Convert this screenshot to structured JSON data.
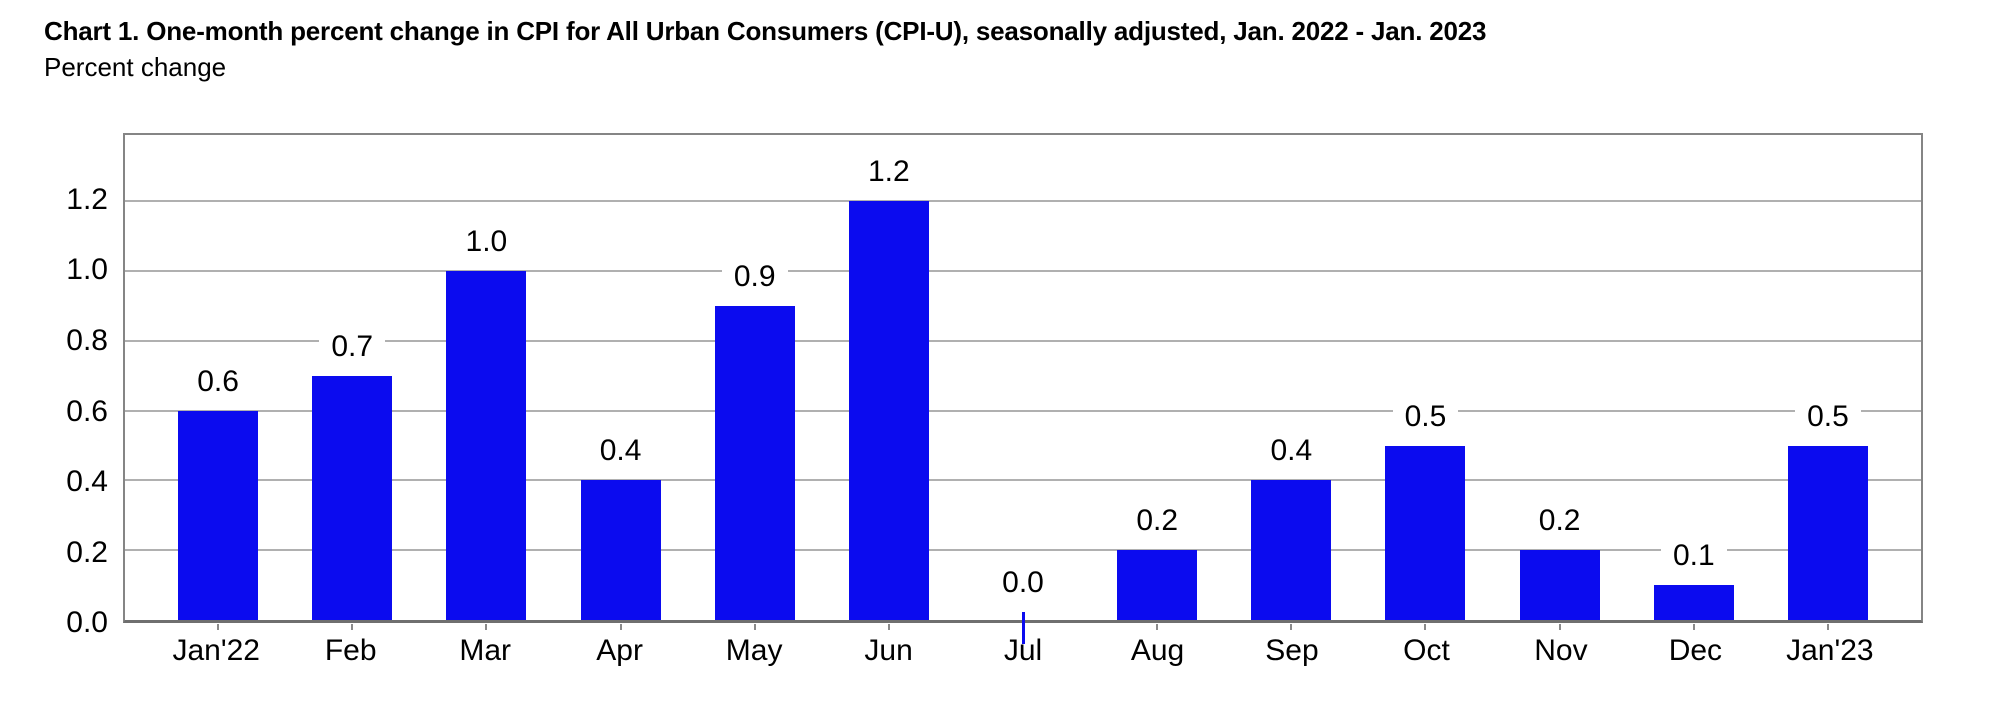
{
  "header": {
    "title": "Chart 1. One-month percent change in CPI for All Urban Consumers (CPI-U), seasonally adjusted, Jan. 2022 - Jan. 2023",
    "subtitle": "Percent change"
  },
  "chart_data": {
    "type": "bar",
    "title": "Chart 1. One-month percent change in CPI for All Urban Consumers (CPI-U), seasonally adjusted, Jan. 2022 - Jan. 2023",
    "ylabel": "Percent change",
    "xlabel": "",
    "categories": [
      "Jan'22",
      "Feb",
      "Mar",
      "Apr",
      "May",
      "Jun",
      "Jul",
      "Aug",
      "Sep",
      "Oct",
      "Nov",
      "Dec",
      "Jan'23"
    ],
    "values": [
      0.6,
      0.7,
      1.0,
      0.4,
      0.9,
      1.2,
      0.0,
      0.2,
      0.4,
      0.5,
      0.2,
      0.1,
      0.5
    ],
    "value_labels": [
      "0.6",
      "0.7",
      "1.0",
      "0.4",
      "0.9",
      "1.2",
      "0.0",
      "0.2",
      "0.4",
      "0.5",
      "0.2",
      "0.1",
      "0.5"
    ],
    "yticks": [
      0.0,
      0.2,
      0.4,
      0.6,
      0.8,
      1.0,
      1.2
    ],
    "ytick_labels": [
      "0.0",
      "0.2",
      "0.4",
      "0.6",
      "0.8",
      "1.0",
      "1.2"
    ],
    "ylim": [
      0,
      1.39
    ],
    "grid": "horizontal",
    "legend": "none",
    "colors": {
      "bar": "#0b0bef",
      "gridline": "#b0b0b0",
      "frame": "#858585",
      "axis": "#6f6f6f",
      "tick": "#8a8a8a",
      "text": "#000000",
      "background": "#ffffff"
    }
  }
}
